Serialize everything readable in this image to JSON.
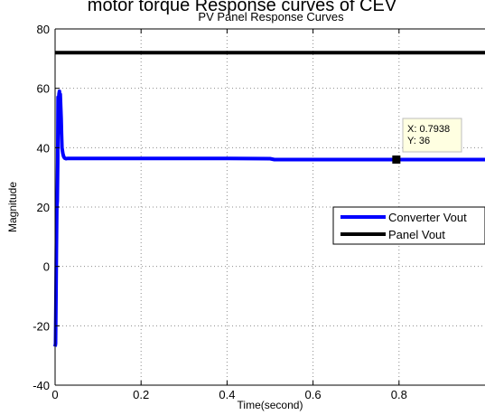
{
  "overlay_text": "motor torque Response curves of CEV",
  "chart_data": {
    "type": "line",
    "title": "PV Panel Response Curves",
    "xlabel": "Time(second)",
    "ylabel": "Magnitude",
    "xlim": [
      0,
      1
    ],
    "ylim": [
      -40,
      80
    ],
    "xticks": [
      0,
      0.2,
      0.4,
      0.6,
      0.8
    ],
    "xtick_labels": [
      "0",
      "0.2",
      "0.4",
      "0.6",
      "0.8"
    ],
    "yticks": [
      -40,
      -20,
      0,
      20,
      40,
      60,
      80
    ],
    "ytick_labels": [
      "-40",
      "-20",
      "0",
      "20",
      "40",
      "60",
      "80"
    ],
    "grid": true,
    "legend_position": "center-right",
    "series": [
      {
        "name": "Converter Vout",
        "color": "#0000ff",
        "x": [
          0,
          0.001,
          0.002,
          0.003,
          0.004,
          0.005,
          0.006,
          0.007,
          0.008,
          0.009,
          0.01,
          0.011,
          0.012,
          0.013,
          0.014,
          0.015,
          0.016,
          0.018,
          0.02,
          0.022,
          0.025,
          0.03,
          0.05,
          0.2,
          0.4,
          0.5,
          0.51,
          0.6,
          0.7938,
          1.0
        ],
        "y": [
          -27,
          -26,
          -10,
          5,
          20,
          22,
          35,
          57,
          45,
          58,
          59,
          47,
          58,
          54,
          50,
          45,
          40,
          38,
          37,
          36.5,
          36.3,
          36.4,
          36.4,
          36.4,
          36.4,
          36.3,
          36,
          36,
          36,
          36
        ]
      },
      {
        "name": "Panel Vout",
        "color": "#000000",
        "x": [
          0,
          1.0
        ],
        "y": [
          72,
          72
        ]
      }
    ],
    "datatip": {
      "x_text": "X: 0.7938",
      "y_text": "Y: 36",
      "x": 0.7938,
      "y": 36
    }
  }
}
